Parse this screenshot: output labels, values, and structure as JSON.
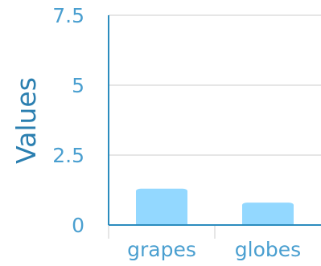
{
  "colors": {
    "accent": "#2b8cbe",
    "tick_text": "#4a9fd0",
    "axis_title": "#2b7fb0",
    "bar_fill": "#93d8ff",
    "grid": "#dddddd",
    "axis_line": "#2b8cbe"
  },
  "chart_data": {
    "type": "bar",
    "categories": [
      "grapes",
      "globes"
    ],
    "values": [
      1.3,
      0.8
    ],
    "ylabel": "Values",
    "xlabel": "",
    "ylim": [
      0,
      7.5
    ],
    "yticks": [
      0,
      2.5,
      5,
      7.5
    ],
    "ytick_labels": [
      "0",
      "2.5",
      "5",
      "7.5"
    ],
    "grid": "horizontal"
  }
}
